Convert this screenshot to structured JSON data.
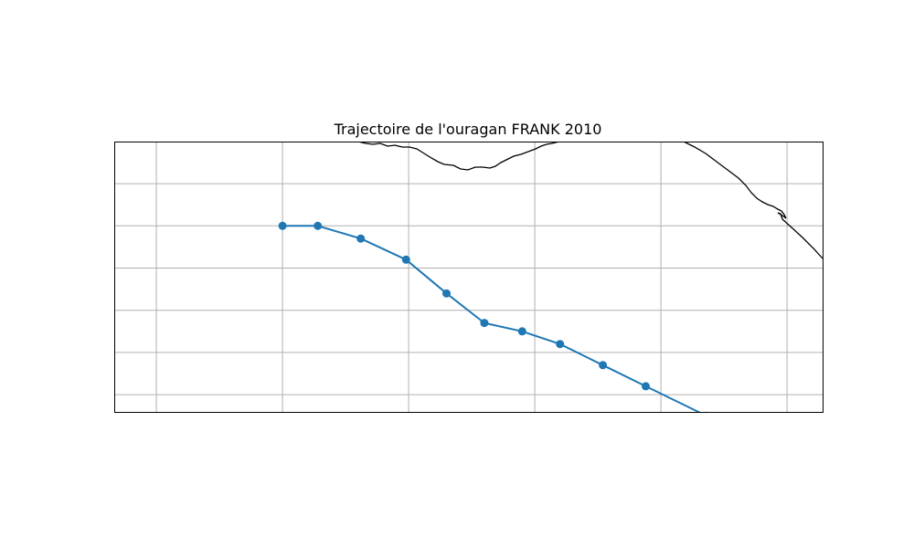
{
  "chart_data": {
    "type": "line",
    "title": "Trajectoire de l'ouragan FRANK 2010",
    "xlabel": "",
    "ylabel": "",
    "projection": "map (longitude / latitude)",
    "grid": true,
    "legend": "none",
    "line_color": "#1f77b4",
    "marker": "circle",
    "coastline_color": "#000000",
    "grid_color": "#b0b0b0",
    "series": [
      {
        "points": [
          {
            "x": -115.0,
            "y": 19.0
          },
          {
            "x": -113.6,
            "y": 19.0
          },
          {
            "x": -111.9,
            "y": 18.7
          },
          {
            "x": -110.1,
            "y": 18.2
          },
          {
            "x": -108.5,
            "y": 17.4
          },
          {
            "x": -107.0,
            "y": 16.7
          },
          {
            "x": -105.5,
            "y": 16.5
          },
          {
            "x": -104.0,
            "y": 16.2
          },
          {
            "x": -102.3,
            "y": 15.7
          },
          {
            "x": -100.6,
            "y": 15.2
          },
          {
            "x": -98.2,
            "y": 14.5
          }
        ]
      }
    ]
  }
}
